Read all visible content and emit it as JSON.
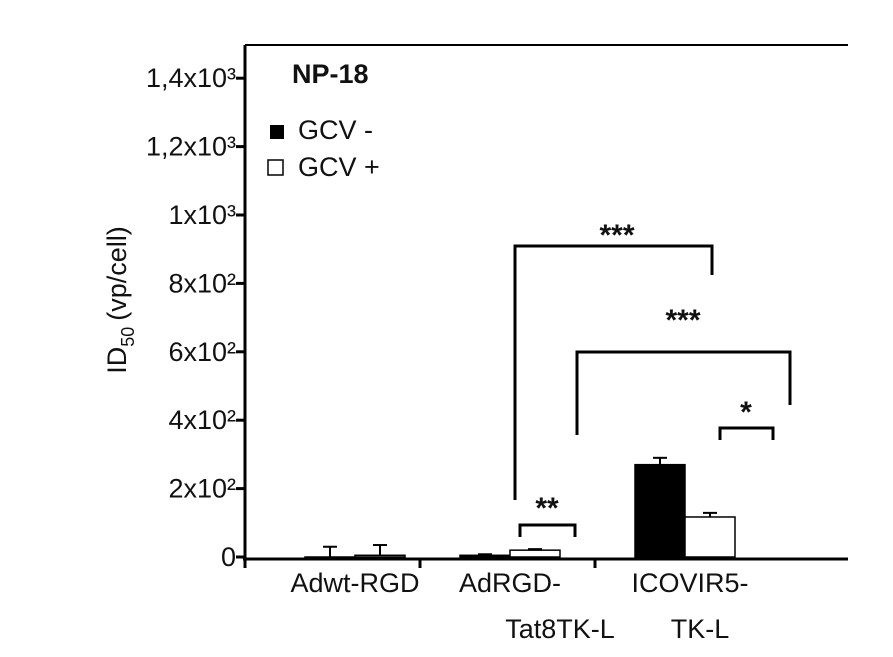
{
  "chart_data": {
    "type": "bar",
    "title": "NP-18",
    "ylabel": {
      "main": "ID",
      "subscript": "50",
      "unit": "(vp/cell)"
    },
    "xlabel": "",
    "ylim": [
      0,
      1400
    ],
    "yticks": [
      {
        "value": 0,
        "label": "0"
      },
      {
        "value": 200,
        "label": "2x10²"
      },
      {
        "value": 400,
        "label": "4x10²"
      },
      {
        "value": 600,
        "label": "6x10²"
      },
      {
        "value": 800,
        "label": "8x10²"
      },
      {
        "value": 1000,
        "label": "1x10³"
      },
      {
        "value": 1200,
        "label": "1,2x10³"
      },
      {
        "value": 1400,
        "label": "1,4x10³"
      }
    ],
    "categories": [
      {
        "line1": "Adwt-RGD",
        "line2": ""
      },
      {
        "line1": "AdRGD-",
        "line2": "Tat8TK-L"
      },
      {
        "line1": "ICOVIR5-",
        "line2": "TK-L"
      }
    ],
    "series": [
      {
        "name": "GCV -",
        "color": "#000000",
        "values": [
          0,
          5,
          270
        ],
        "errors": [
          30,
          3,
          20
        ]
      },
      {
        "name": "GCV +",
        "color": "#ffffff",
        "values": [
          5,
          20,
          117
        ],
        "errors": [
          30,
          3,
          12
        ]
      }
    ],
    "legend": {
      "position": "top-left",
      "items": [
        "GCV -",
        "GCV +"
      ]
    },
    "significance": [
      {
        "label": "**",
        "between": "AdRGD-Tat8TK-L GCV- vs GCV+"
      },
      {
        "label": "*",
        "between": "ICOVIR5-TK-L GCV- vs GCV+"
      },
      {
        "label": "***",
        "between": "AdRGD-Tat8TK-L GCV- vs ICOVIR5-TK-L GCV-"
      },
      {
        "label": "***",
        "between": "AdRGD-Tat8TK-L GCV+ vs ICOVIR5-TK-L GCV+"
      }
    ],
    "grid": false
  }
}
